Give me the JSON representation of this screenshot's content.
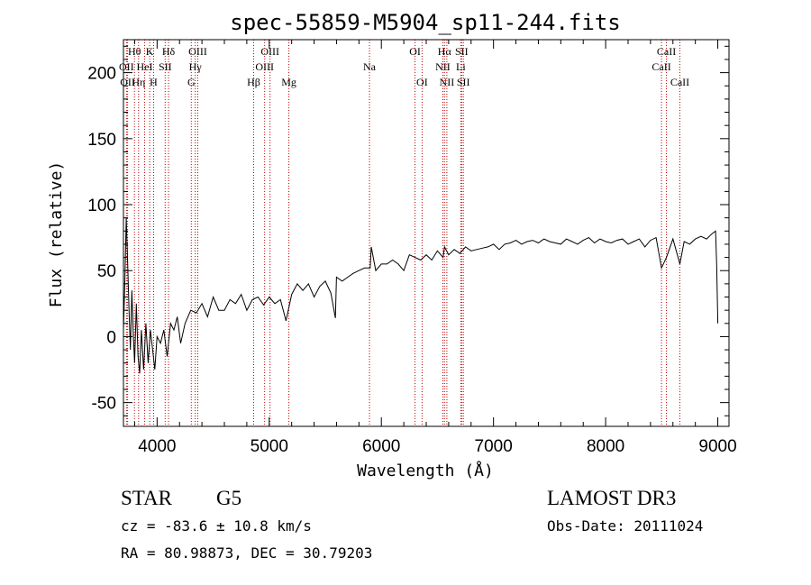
{
  "chart_data": {
    "type": "line",
    "title": "spec-55859-M5904_sp11-244.fits",
    "xlabel": "Wavelength (Å)",
    "ylabel": "Flux (relative)",
    "xlim": [
      3700,
      9100
    ],
    "ylim": [
      -68,
      225
    ],
    "xticks": [
      4000,
      5000,
      6000,
      7000,
      8000,
      9000
    ],
    "yticks": [
      -50,
      0,
      50,
      100,
      150,
      200
    ],
    "spectrum": {
      "name": "flux",
      "x": [
        3700,
        3712,
        3725,
        3738,
        3750,
        3762,
        3775,
        3788,
        3800,
        3815,
        3830,
        3845,
        3860,
        3880,
        3900,
        3920,
        3940,
        3960,
        3980,
        4000,
        4030,
        4060,
        4090,
        4120,
        4150,
        4180,
        4210,
        4250,
        4300,
        4350,
        4400,
        4450,
        4500,
        4550,
        4600,
        4650,
        4700,
        4750,
        4800,
        4850,
        4900,
        4950,
        5000,
        5050,
        5100,
        5150,
        5200,
        5250,
        5300,
        5350,
        5400,
        5450,
        5500,
        5550,
        5590,
        5600,
        5650,
        5700,
        5750,
        5800,
        5850,
        5900,
        5910,
        5950,
        6000,
        6050,
        6100,
        6150,
        6200,
        6250,
        6300,
        6350,
        6400,
        6450,
        6500,
        6550,
        6563,
        6600,
        6650,
        6700,
        6750,
        6800,
        6850,
        6900,
        6950,
        7000,
        7050,
        7100,
        7150,
        7200,
        7250,
        7300,
        7350,
        7400,
        7450,
        7500,
        7550,
        7600,
        7650,
        7700,
        7750,
        7800,
        7850,
        7900,
        7950,
        8000,
        8050,
        8100,
        8150,
        8200,
        8250,
        8300,
        8350,
        8400,
        8450,
        8498,
        8542,
        8600,
        8662,
        8700,
        8750,
        8800,
        8850,
        8900,
        8950,
        8980,
        8990,
        9000
      ],
      "y": [
        5,
        40,
        90,
        55,
        20,
        -10,
        35,
        0,
        -20,
        25,
        -15,
        -28,
        5,
        -25,
        10,
        -20,
        5,
        -10,
        -25,
        0,
        -5,
        5,
        -15,
        10,
        5,
        15,
        -5,
        10,
        20,
        18,
        25,
        15,
        30,
        20,
        20,
        28,
        25,
        32,
        20,
        28,
        30,
        24,
        30,
        25,
        28,
        12,
        32,
        40,
        35,
        40,
        30,
        38,
        42,
        33,
        14,
        45,
        42,
        45,
        48,
        50,
        52,
        52,
        68,
        50,
        55,
        55,
        58,
        55,
        50,
        62,
        60,
        58,
        62,
        58,
        65,
        60,
        68,
        62,
        66,
        63,
        68,
        65,
        66,
        67,
        68,
        70,
        66,
        70,
        71,
        73,
        70,
        72,
        73,
        71,
        74,
        72,
        71,
        70,
        74,
        72,
        70,
        73,
        75,
        71,
        74,
        72,
        71,
        73,
        74,
        70,
        72,
        74,
        68,
        73,
        75,
        52,
        60,
        74,
        55,
        72,
        70,
        74,
        76,
        74,
        78,
        80,
        55,
        10
      ]
    },
    "line_markers": [
      {
        "label": "Hθ",
        "x": 3798,
        "row": 1
      },
      {
        "label": "OII",
        "x": 3727,
        "row": 2
      },
      {
        "label": "OII",
        "x": 3737,
        "row": 3
      },
      {
        "label": "Hη",
        "x": 3835,
        "row": 3
      },
      {
        "label": "K",
        "x": 3934,
        "row": 1
      },
      {
        "label": "HeI",
        "x": 3889,
        "row": 2
      },
      {
        "label": "H",
        "x": 3969,
        "row": 3
      },
      {
        "label": "Hδ",
        "x": 4102,
        "row": 1
      },
      {
        "label": "SII",
        "x": 4072,
        "row": 2
      },
      {
        "label": "OIII",
        "x": 4363,
        "row": 1
      },
      {
        "label": "Hγ",
        "x": 4340,
        "row": 2
      },
      {
        "label": "G",
        "x": 4305,
        "row": 3
      },
      {
        "label": "OIII",
        "x": 5007,
        "row": 1
      },
      {
        "label": "OIII",
        "x": 4959,
        "row": 2
      },
      {
        "label": "Hβ",
        "x": 4861,
        "row": 3
      },
      {
        "label": "Mg",
        "x": 5175,
        "row": 3
      },
      {
        "label": "Na",
        "x": 5894,
        "row": 2
      },
      {
        "label": "OI",
        "x": 6300,
        "row": 1
      },
      {
        "label": "OI",
        "x": 6363,
        "row": 3
      },
      {
        "label": "Hα",
        "x": 6563,
        "row": 1
      },
      {
        "label": "SII",
        "x": 6716,
        "row": 1
      },
      {
        "label": "NII",
        "x": 6548,
        "row": 2
      },
      {
        "label": "Li",
        "x": 6708,
        "row": 2
      },
      {
        "label": "NII",
        "x": 6584,
        "row": 3
      },
      {
        "label": "SII",
        "x": 6731,
        "row": 3
      },
      {
        "label": "CaII",
        "x": 8542,
        "row": 1
      },
      {
        "label": "CaII",
        "x": 8498,
        "row": 2
      },
      {
        "label": "CaII",
        "x": 8662,
        "row": 3
      }
    ]
  },
  "info": {
    "object_class": "STAR",
    "subclass": "G5",
    "survey": "LAMOST DR3",
    "redshift_line": "cz = -83.6 ± 10.8 km/s",
    "obs_date": "Obs-Date: 20111024",
    "coords_line": "RA =  80.98873, DEC =  30.79203"
  }
}
